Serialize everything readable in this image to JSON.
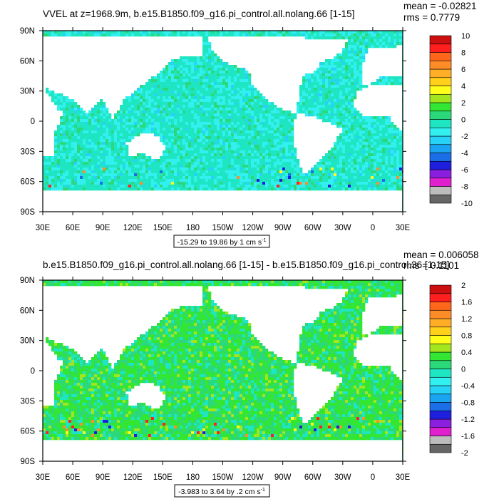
{
  "palette": [
    "#666666",
    "#bdbdbd",
    "#e01fcf",
    "#8b1fe0",
    "#1f1fe0",
    "#1a6fe6",
    "#1aa3f0",
    "#26d2f5",
    "#33f0f0",
    "#1fe6c2",
    "#2bd97a",
    "#33e633",
    "#a3e61f",
    "#ffff1a",
    "#ffd11a",
    "#ffae26",
    "#ff8c26",
    "#ff6619",
    "#ff1f1f",
    "#cc1010"
  ],
  "ocean_pattern": "random noise cells",
  "chart_data": [
    {
      "type": "heatmap",
      "title": "VVEL at z=1968.9m, b.e15.B1850.f09_g16.pi_control.all.nolang.66 [1-15]",
      "stats": {
        "mean": "mean = -0.02821",
        "rms": "rms = 0.7779"
      },
      "x_ticks": [
        "30E",
        "60E",
        "90E",
        "120E",
        "150E",
        "180",
        "150W",
        "120W",
        "90W",
        "60W",
        "30W",
        "0",
        "30E"
      ],
      "y_ticks": [
        "90N",
        "60N",
        "30N",
        "0",
        "30S",
        "60S",
        "90S"
      ],
      "range_label": "-15.29 to 19.86 by 1 cm s",
      "range_sup": "-1",
      "colorbar_labels": [
        "10",
        "8",
        "6",
        "4",
        "2",
        "0",
        "-2",
        "-4",
        "-6",
        "-8",
        "-10"
      ]
    },
    {
      "type": "heatmap",
      "title": "b.e15.B1850.f09_g16.pi_control.all.nolang.66 [1-15] - b.e15.B1850.f09_g16.pi_control.36 [1-15]",
      "stats": {
        "mean": "mean = 0.006058",
        "rms": "rms = 0.1101"
      },
      "x_ticks": [
        "30E",
        "60E",
        "90E",
        "120E",
        "150E",
        "180",
        "150W",
        "120W",
        "90W",
        "60W",
        "30W",
        "0",
        "30E"
      ],
      "y_ticks": [
        "90N",
        "60N",
        "30N",
        "0",
        "30S",
        "60S",
        "90S"
      ],
      "range_label": "-3.983 to 3.64 by .2 cm s",
      "range_sup": "-1",
      "colorbar_labels": [
        "2",
        "1.6",
        "1.2",
        "0.8",
        "0.4",
        "0",
        "-0.4",
        "-0.8",
        "-1.2",
        "-1.6",
        "-2"
      ]
    }
  ]
}
